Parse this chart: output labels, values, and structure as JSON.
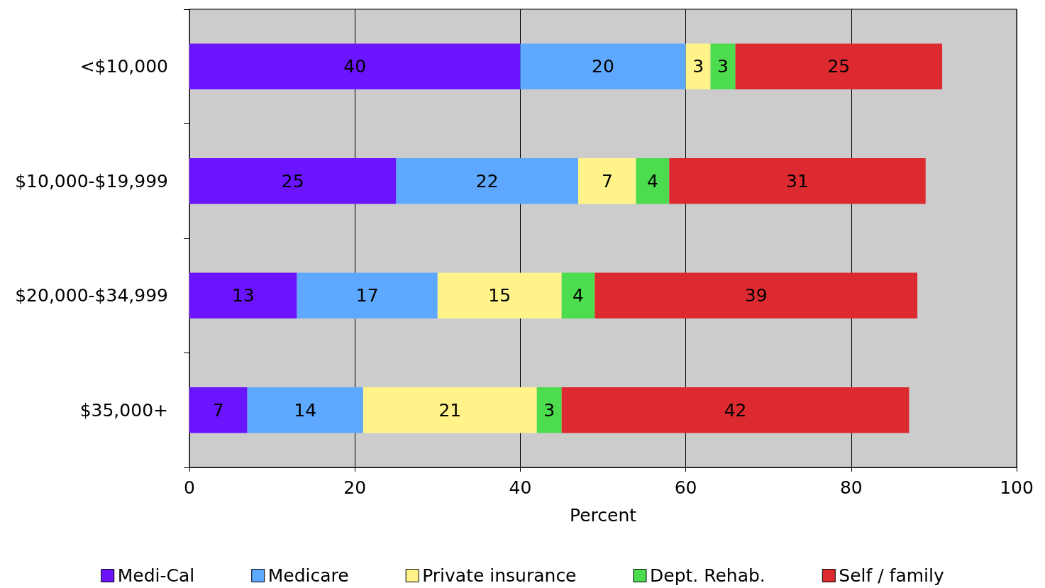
{
  "chart_data": {
    "type": "bar",
    "orientation": "horizontal",
    "stacked": true,
    "xlabel": "Percent",
    "categories": [
      "<$10,000",
      "$10,000-$19,999",
      "$20,000-$34,999",
      "$35,000+"
    ],
    "series": [
      {
        "name": "Medi-Cal",
        "color": "#6a14ff",
        "values": [
          40,
          25,
          13,
          7
        ]
      },
      {
        "name": "Medicare",
        "color": "#5fa8ff",
        "values": [
          20,
          22,
          17,
          14
        ]
      },
      {
        "name": "Private insurance",
        "color": "#fff38a",
        "values": [
          3,
          7,
          15,
          21
        ]
      },
      {
        "name": "Dept. Rehab.",
        "color": "#4ddc4d",
        "values": [
          3,
          4,
          4,
          3
        ]
      },
      {
        "name": "Self / family",
        "color": "#dc2a30",
        "values": [
          25,
          31,
          39,
          42
        ]
      }
    ],
    "xlim": [
      0,
      100
    ],
    "xticks": [
      0,
      20,
      40,
      60,
      80,
      100
    ],
    "grid": "x",
    "legend": "bottom",
    "data_labels": true
  }
}
